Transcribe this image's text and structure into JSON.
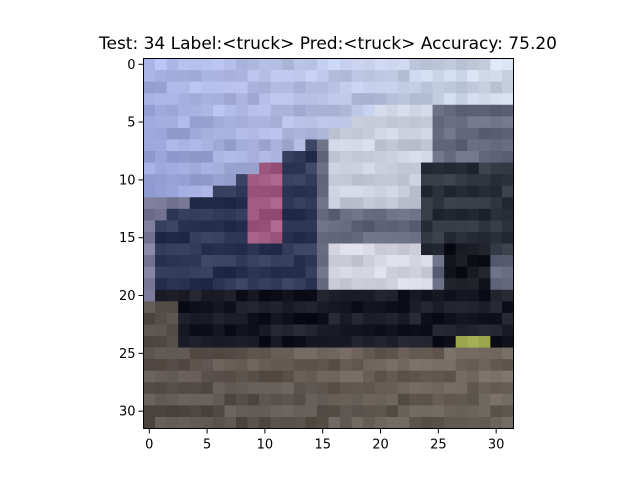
{
  "figure": {
    "title": "Test: 34  Label:<truck>  Pred:<truck>  Accuracy: 75.20"
  },
  "image": {
    "description_id": "cifar-truck",
    "grid_size": [
      32,
      32
    ]
  },
  "axes": {
    "x_ticks": [
      "0",
      "5",
      "10",
      "15",
      "20",
      "25",
      "30"
    ],
    "y_ticks": [
      "0",
      "5",
      "10",
      "15",
      "20",
      "25",
      "30"
    ],
    "x_range": [
      -0.5,
      31.5
    ],
    "y_range": [
      -0.5,
      31.5
    ]
  }
}
